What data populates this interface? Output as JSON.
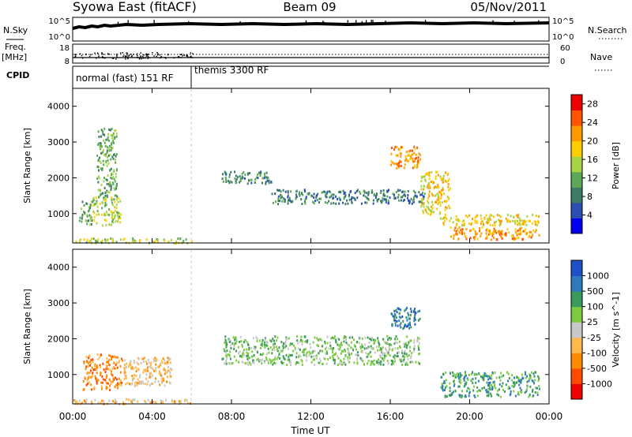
{
  "header": {
    "title": "Syowa East (fitACF)",
    "beam": "Beam 09",
    "date": "05/Nov/2011"
  },
  "summary": {
    "nsky_label": "N.Sky",
    "nsearch_label": "N.Search",
    "count_ticks": [
      "10^5",
      "10^0"
    ],
    "freq_label": "Freq.",
    "freq_unit": "[MHz]",
    "freq_ticks": [
      "18",
      "8"
    ],
    "nave_label": "Nave",
    "nave_ticks": [
      "60",
      "0"
    ],
    "cpid_label": "CPID",
    "modes": [
      {
        "label": "normal (fast) 151 RF",
        "start_hour": 0
      },
      {
        "label": "themis 3300 RF",
        "start_hour": 6
      }
    ]
  },
  "colors": {
    "power_scale": [
      "#0000ee",
      "#2a4fb0",
      "#3b7a64",
      "#5aa858",
      "#a8d448",
      "#ffcc00",
      "#ff9900",
      "#ff5500",
      "#ee0000"
    ],
    "velocity_scale": [
      "#2050c8",
      "#2e7abf",
      "#3a9a5a",
      "#7ccc40",
      "#c8c8c8",
      "#ffb84a",
      "#ff8a00",
      "#ff4a00",
      "#ee0000"
    ]
  },
  "chart_data": [
    {
      "type": "heatmap",
      "panel": "power",
      "x_unit": "hours UT",
      "xlabel": "Time UT",
      "ylabel": "Slant Range [km]",
      "xlim": [
        0,
        24
      ],
      "ylim": [
        180,
        4500
      ],
      "x_ticks": [
        "00:00",
        "04:00",
        "08:00",
        "12:00",
        "16:00",
        "20:00",
        "00:00"
      ],
      "y_ticks": [
        1000,
        2000,
        3000,
        4000
      ],
      "colorbar": {
        "label": "Power [dB]",
        "ticks": [
          4,
          8,
          12,
          16,
          20,
          24,
          28
        ],
        "range": [
          0,
          30
        ]
      },
      "regions": [
        {
          "hours": [
            0,
            6
          ],
          "range_km": [
            200,
            340
          ],
          "value": 16
        },
        {
          "hours": [
            0.3,
            1.0
          ],
          "range_km": [
            700,
            1400
          ],
          "value": 10
        },
        {
          "hours": [
            1.0,
            2.4
          ],
          "range_km": [
            700,
            1500
          ],
          "value": 14
        },
        {
          "hours": [
            1.2,
            2.2
          ],
          "range_km": [
            1500,
            3400
          ],
          "value": 12
        },
        {
          "hours": [
            7.5,
            10.0
          ],
          "range_km": [
            1850,
            2200
          ],
          "value": 6
        },
        {
          "hours": [
            10.0,
            14.0
          ],
          "range_km": [
            1300,
            1700
          ],
          "value": 8
        },
        {
          "hours": [
            14.0,
            17.8
          ],
          "range_km": [
            1300,
            1700
          ],
          "value": 9
        },
        {
          "hours": [
            16.0,
            17.5
          ],
          "range_km": [
            2300,
            2900
          ],
          "value": 24
        },
        {
          "hours": [
            17.5,
            19.0
          ],
          "range_km": [
            1000,
            2200
          ],
          "value": 18
        },
        {
          "hours": [
            18.5,
            23.5
          ],
          "range_km": [
            700,
            1000
          ],
          "value": 20
        },
        {
          "hours": [
            19.0,
            23.5
          ],
          "range_km": [
            300,
            650
          ],
          "value": 22
        }
      ]
    },
    {
      "type": "heatmap",
      "panel": "velocity",
      "x_unit": "hours UT",
      "xlabel": "Time UT",
      "ylabel": "Slant Range [km]",
      "xlim": [
        0,
        24
      ],
      "ylim": [
        180,
        4500
      ],
      "x_ticks": [
        "00:00",
        "04:00",
        "08:00",
        "12:00",
        "16:00",
        "20:00",
        "00:00"
      ],
      "y_ticks": [
        1000,
        2000,
        3000,
        4000
      ],
      "colorbar": {
        "label": "Velocity [m s^-1]",
        "ticks": [
          "1000",
          "500",
          "100",
          "25",
          "-25",
          "-100",
          "-500",
          "-1000"
        ]
      },
      "regions": [
        {
          "hours": [
            0,
            6
          ],
          "range_km": [
            200,
            340
          ],
          "value": "-100"
        },
        {
          "hours": [
            0.5,
            2.5
          ],
          "range_km": [
            600,
            1600
          ],
          "value": "-500"
        },
        {
          "hours": [
            2.5,
            5.0
          ],
          "range_km": [
            700,
            1500
          ],
          "value": "-100"
        },
        {
          "hours": [
            7.5,
            17.5
          ],
          "range_km": [
            1300,
            2100
          ],
          "value": "25"
        },
        {
          "hours": [
            16.0,
            17.5
          ],
          "range_km": [
            2300,
            2900
          ],
          "value": "500"
        },
        {
          "hours": [
            18.5,
            23.5
          ],
          "range_km": [
            400,
            1100
          ],
          "value": "100"
        }
      ]
    }
  ]
}
